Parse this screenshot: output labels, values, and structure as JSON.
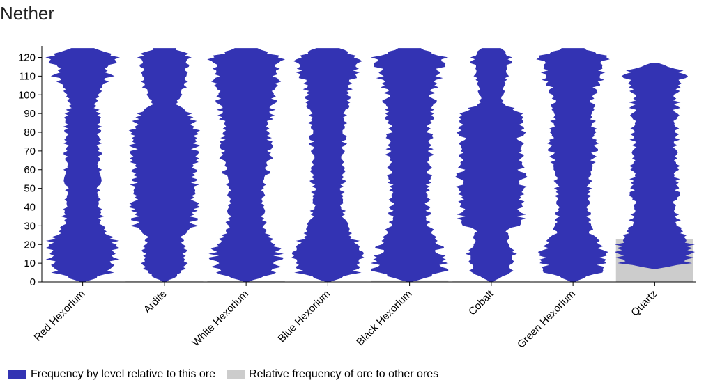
{
  "title": "Nether",
  "chart_data": {
    "type": "violin",
    "title": "Nether",
    "ylim": [
      0,
      128
    ],
    "yticks": [
      "0",
      "10",
      "20",
      "30",
      "40",
      "50",
      "60",
      "70",
      "80",
      "90",
      "100",
      "110",
      "120"
    ],
    "categories": [
      "Red Hexorium",
      "Ardite",
      "White Hexorium",
      "Blue Hexorium",
      "Black Hexorium",
      "Cobalt",
      "Green Hexorium",
      "Quartz"
    ],
    "relative_frequency": [
      0.2,
      0.3,
      0.7,
      0.2,
      0.8,
      0.3,
      0.2,
      23.0
    ],
    "level_profiles": [
      {
        "name": "Red Hexorium",
        "profile": [
          [
            0,
            0.05
          ],
          [
            5,
            0.75
          ],
          [
            10,
            0.85
          ],
          [
            15,
            0.9
          ],
          [
            18,
            0.95
          ],
          [
            20,
            1.0
          ],
          [
            25,
            0.7
          ],
          [
            30,
            0.55
          ],
          [
            40,
            0.45
          ],
          [
            50,
            0.45
          ],
          [
            60,
            0.45
          ],
          [
            70,
            0.45
          ],
          [
            80,
            0.45
          ],
          [
            90,
            0.45
          ],
          [
            95,
            0.3
          ],
          [
            100,
            0.5
          ],
          [
            105,
            0.6
          ],
          [
            110,
            0.75
          ],
          [
            115,
            0.7
          ],
          [
            120,
            0.95
          ],
          [
            125,
            0.3
          ]
        ]
      },
      {
        "name": "Ardite",
        "profile": [
          [
            0,
            0.05
          ],
          [
            5,
            0.5
          ],
          [
            10,
            0.6
          ],
          [
            15,
            0.55
          ],
          [
            20,
            0.55
          ],
          [
            25,
            0.5
          ],
          [
            30,
            0.8
          ],
          [
            40,
            0.85
          ],
          [
            50,
            0.85
          ],
          [
            60,
            0.85
          ],
          [
            70,
            0.85
          ],
          [
            80,
            0.85
          ],
          [
            90,
            0.75
          ],
          [
            95,
            0.3
          ],
          [
            100,
            0.45
          ],
          [
            105,
            0.55
          ],
          [
            110,
            0.6
          ],
          [
            115,
            0.6
          ],
          [
            120,
            0.75
          ],
          [
            125,
            0.3
          ]
        ]
      },
      {
        "name": "White Hexorium",
        "profile": [
          [
            0,
            0.05
          ],
          [
            5,
            0.8
          ],
          [
            10,
            0.85
          ],
          [
            15,
            0.9
          ],
          [
            20,
            0.85
          ],
          [
            25,
            0.6
          ],
          [
            30,
            0.5
          ],
          [
            40,
            0.45
          ],
          [
            50,
            0.45
          ],
          [
            60,
            0.6
          ],
          [
            70,
            0.65
          ],
          [
            80,
            0.65
          ],
          [
            90,
            0.7
          ],
          [
            100,
            0.75
          ],
          [
            110,
            0.85
          ],
          [
            115,
            0.9
          ],
          [
            120,
            0.95
          ],
          [
            125,
            0.3
          ]
        ]
      },
      {
        "name": "Blue Hexorium",
        "profile": [
          [
            0,
            0.05
          ],
          [
            5,
            0.8
          ],
          [
            10,
            0.85
          ],
          [
            15,
            0.95
          ],
          [
            20,
            0.85
          ],
          [
            25,
            0.65
          ],
          [
            30,
            0.5
          ],
          [
            40,
            0.4
          ],
          [
            50,
            0.4
          ],
          [
            55,
            0.45
          ],
          [
            60,
            0.4
          ],
          [
            70,
            0.45
          ],
          [
            80,
            0.45
          ],
          [
            90,
            0.5
          ],
          [
            100,
            0.55
          ],
          [
            110,
            0.75
          ],
          [
            115,
            0.75
          ],
          [
            120,
            0.85
          ],
          [
            125,
            0.3
          ]
        ]
      },
      {
        "name": "Black Hexorium",
        "profile": [
          [
            0,
            0.05
          ],
          [
            5,
            0.9
          ],
          [
            10,
            0.9
          ],
          [
            15,
            0.85
          ],
          [
            20,
            0.8
          ],
          [
            25,
            0.7
          ],
          [
            30,
            0.55
          ],
          [
            40,
            0.5
          ],
          [
            50,
            0.5
          ],
          [
            60,
            0.55
          ],
          [
            70,
            0.6
          ],
          [
            80,
            0.55
          ],
          [
            90,
            0.6
          ],
          [
            100,
            0.65
          ],
          [
            110,
            0.8
          ],
          [
            115,
            0.85
          ],
          [
            120,
            0.95
          ],
          [
            125,
            0.3
          ]
        ]
      },
      {
        "name": "Cobalt",
        "profile": [
          [
            0,
            0.05
          ],
          [
            5,
            0.5
          ],
          [
            10,
            0.6
          ],
          [
            15,
            0.6
          ],
          [
            20,
            0.5
          ],
          [
            25,
            0.45
          ],
          [
            28,
            0.4
          ],
          [
            30,
            0.8
          ],
          [
            40,
            0.85
          ],
          [
            50,
            0.85
          ],
          [
            60,
            0.85
          ],
          [
            70,
            0.85
          ],
          [
            80,
            0.85
          ],
          [
            90,
            0.85
          ],
          [
            95,
            0.35
          ],
          [
            100,
            0.3
          ],
          [
            105,
            0.35
          ],
          [
            110,
            0.45
          ],
          [
            115,
            0.45
          ],
          [
            120,
            0.55
          ],
          [
            125,
            0.25
          ]
        ]
      },
      {
        "name": "Green Hexorium",
        "profile": [
          [
            0,
            0.05
          ],
          [
            5,
            0.7
          ],
          [
            10,
            0.8
          ],
          [
            15,
            0.85
          ],
          [
            20,
            0.75
          ],
          [
            25,
            0.5
          ],
          [
            30,
            0.45
          ],
          [
            40,
            0.4
          ],
          [
            50,
            0.45
          ],
          [
            60,
            0.5
          ],
          [
            70,
            0.6
          ],
          [
            80,
            0.6
          ],
          [
            90,
            0.55
          ],
          [
            100,
            0.55
          ],
          [
            105,
            0.65
          ],
          [
            110,
            0.8
          ],
          [
            115,
            0.75
          ],
          [
            120,
            0.95
          ],
          [
            125,
            0.3
          ]
        ]
      },
      {
        "name": "Quartz",
        "profile": [
          [
            7,
            0.05
          ],
          [
            10,
            0.95
          ],
          [
            15,
            0.95
          ],
          [
            20,
            0.95
          ],
          [
            25,
            0.85
          ],
          [
            30,
            0.7
          ],
          [
            40,
            0.6
          ],
          [
            50,
            0.6
          ],
          [
            60,
            0.6
          ],
          [
            70,
            0.6
          ],
          [
            80,
            0.6
          ],
          [
            90,
            0.6
          ],
          [
            100,
            0.6
          ],
          [
            110,
            0.8
          ],
          [
            113,
            0.7
          ],
          [
            117,
            0.1
          ]
        ]
      }
    ]
  },
  "legend": [
    {
      "label": "Frequency by level relative to this ore",
      "color": "#3333b3"
    },
    {
      "label": "Relative frequency of ore to other ores",
      "color": "#cccccc"
    }
  ],
  "colors": {
    "violin": "#3333b3",
    "relative_bar": "#cccccc",
    "axis": "#000000"
  }
}
